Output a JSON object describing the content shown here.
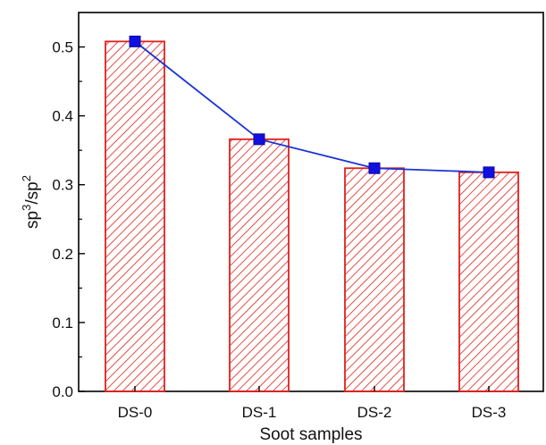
{
  "chart_data": {
    "type": "bar",
    "categories": [
      "DS-0",
      "DS-1",
      "DS-2",
      "DS-3"
    ],
    "values": [
      0.508,
      0.366,
      0.324,
      0.318
    ],
    "line_series": [
      0.508,
      0.366,
      0.324,
      0.318
    ],
    "xlabel": "Soot samples",
    "ylabel": {
      "base1": "sp",
      "sup1": "3",
      "mid": "/sp",
      "sup2": "2"
    },
    "ylim": [
      0,
      0.55
    ],
    "yticks": [
      0.0,
      0.1,
      0.2,
      0.3,
      0.4,
      0.5
    ],
    "ytick_labels": [
      "0.0",
      "0.1",
      "0.2",
      "0.3",
      "0.4",
      "0.5"
    ],
    "grid": false,
    "colors": {
      "bar_edge": "#e0201b",
      "bar_hatch": "#e0201b",
      "line": "#1a33d6",
      "marker": "#1010e0"
    }
  }
}
